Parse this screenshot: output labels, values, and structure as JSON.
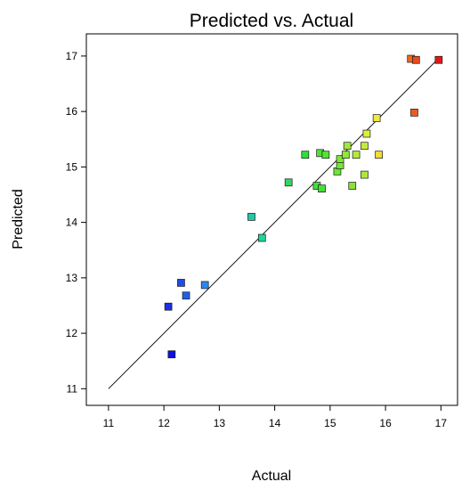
{
  "chart_data": {
    "type": "scatter",
    "title": "Predicted vs. Actual",
    "xlabel": "Actual",
    "ylabel": "Predicted",
    "xlim": [
      10.6,
      17.3
    ],
    "ylim": [
      10.7,
      17.4
    ],
    "xticks": [
      "11",
      "12",
      "13",
      "14",
      "15",
      "16",
      "17"
    ],
    "yticks": [
      "11",
      "12",
      "13",
      "14",
      "15",
      "16",
      "17"
    ],
    "reference_line": [
      [
        11,
        11
      ],
      [
        17,
        17
      ]
    ],
    "grid": false,
    "legend": false,
    "series": [
      {
        "points": [
          {
            "x": 12.14,
            "y": 11.62,
            "color": "#1010e0"
          },
          {
            "x": 12.08,
            "y": 12.48,
            "color": "#1c2ee6"
          },
          {
            "x": 12.31,
            "y": 12.91,
            "color": "#204de8"
          },
          {
            "x": 12.4,
            "y": 12.68,
            "color": "#2060e8"
          },
          {
            "x": 12.74,
            "y": 12.87,
            "color": "#2c88ee"
          },
          {
            "x": 13.58,
            "y": 14.1,
            "color": "#20c8a8"
          },
          {
            "x": 13.77,
            "y": 13.72,
            "color": "#20d498"
          },
          {
            "x": 14.25,
            "y": 14.72,
            "color": "#2cd860"
          },
          {
            "x": 14.55,
            "y": 15.22,
            "color": "#30de3e"
          },
          {
            "x": 14.76,
            "y": 14.66,
            "color": "#3ee03a"
          },
          {
            "x": 14.85,
            "y": 14.61,
            "color": "#44e036"
          },
          {
            "x": 14.82,
            "y": 15.25,
            "color": "#4ee238"
          },
          {
            "x": 14.92,
            "y": 15.22,
            "color": "#56e236"
          },
          {
            "x": 15.13,
            "y": 14.92,
            "color": "#6ce438"
          },
          {
            "x": 15.18,
            "y": 15.03,
            "color": "#74e638"
          },
          {
            "x": 15.18,
            "y": 15.14,
            "color": "#7ee83a"
          },
          {
            "x": 15.28,
            "y": 15.22,
            "color": "#90e83a"
          },
          {
            "x": 15.31,
            "y": 15.38,
            "color": "#a0e83c"
          },
          {
            "x": 15.4,
            "y": 14.66,
            "color": "#88e23a"
          },
          {
            "x": 15.47,
            "y": 15.22,
            "color": "#b4ea3c"
          },
          {
            "x": 15.62,
            "y": 15.38,
            "color": "#c4ec3e"
          },
          {
            "x": 15.62,
            "y": 14.86,
            "color": "#b0e63c"
          },
          {
            "x": 15.66,
            "y": 15.6,
            "color": "#dcee3e"
          },
          {
            "x": 15.84,
            "y": 15.88,
            "color": "#f0e83c"
          },
          {
            "x": 15.88,
            "y": 15.22,
            "color": "#f0dc3a"
          },
          {
            "x": 16.52,
            "y": 15.98,
            "color": "#ee5a1e"
          },
          {
            "x": 16.46,
            "y": 16.95,
            "color": "#ee6a20"
          },
          {
            "x": 16.55,
            "y": 16.93,
            "color": "#ea4a1c"
          },
          {
            "x": 16.96,
            "y": 16.93,
            "color": "#e01818"
          }
        ]
      }
    ]
  }
}
